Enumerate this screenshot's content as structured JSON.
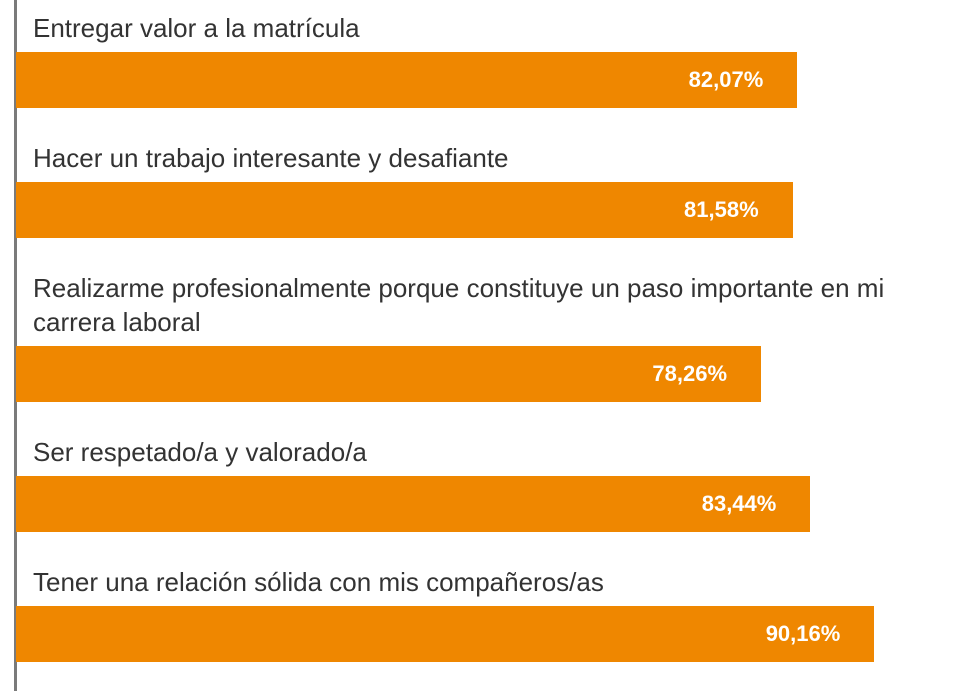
{
  "chart_data": {
    "type": "bar",
    "orientation": "horizontal",
    "categories": [
      "Entregar valor a la matrícula",
      "Hacer un trabajo interesante y desafiante",
      "Realizarme profesionalmente porque constituye un paso importante en mi carrera laboral",
      "Ser respetado/a y valorado/a",
      "Tener una relación sólida con mis compañeros/as"
    ],
    "values": [
      82.07,
      81.58,
      78.26,
      83.44,
      90.16
    ],
    "value_labels": [
      "82,07%",
      "81,58%",
      "78,26%",
      "83,44%",
      "90,16%"
    ],
    "color": "#ef8700",
    "xlim": [
      0,
      100
    ]
  }
}
